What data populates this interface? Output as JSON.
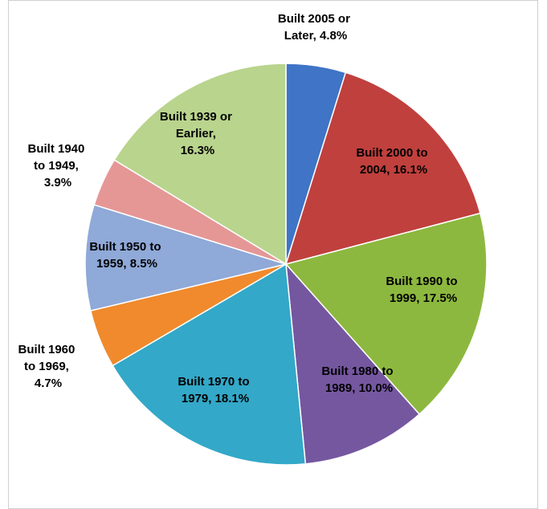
{
  "chart_data": {
    "type": "pie",
    "values": [
      4.8,
      16.1,
      17.5,
      10.0,
      18.1,
      4.7,
      8.5,
      3.9,
      16.3
    ],
    "value_labels": [
      "Built 2005 or Later, 4.8%",
      "Built 2000 to 2004, 16.1%",
      "Built 1990 to 1999, 17.5%",
      "Built 1980 to 1989, 10.0%",
      "Built 1970 to 1979, 18.1%",
      "Built 1960 to 1969, 4.7%",
      "Built 1950 to 1959, 8.5%",
      "Built 1940 to 1949, 3.9%",
      "Built 1939 or Earlier, 16.3%"
    ],
    "colors": [
      "#3f74c6",
      "#c0403d",
      "#8db83f",
      "#7557a0",
      "#33a8c8",
      "#f08a2c",
      "#8fa9d8",
      "#e59796",
      "#b9d48d"
    ]
  }
}
